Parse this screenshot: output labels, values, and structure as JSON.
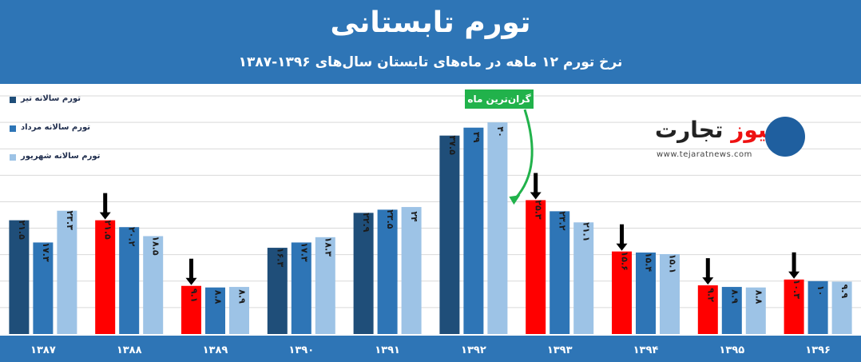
{
  "header": {
    "title": "تورم تابستانی",
    "subtitle": "نرخ تورم ۱۲ ماهه در ماه‌های تابستان سال‌های ۱۳۹۶-۱۳۸۷"
  },
  "legend": {
    "items": [
      {
        "label": "تورم سالانه تیر",
        "color": "#1f4e79"
      },
      {
        "label": "تورم سالانه مرداد",
        "color": "#2e75b6"
      },
      {
        "label": "تورم سالانه شهریور",
        "color": "#9dc3e6"
      }
    ]
  },
  "annotation": {
    "label": "گران‌ترین ماه"
  },
  "logo": {
    "brand_black": "تجارت",
    "brand_red": "نیوز",
    "url": "www.tejaratnews.com"
  },
  "colors": {
    "header_bg": "#2e75b6",
    "tir": "#1f4e79",
    "mordad": "#2e75b6",
    "shahrivar": "#9dc3e6",
    "highlight": "#ff0000",
    "grid": "#d9d9d9",
    "green": "#21b24b"
  },
  "chart_data": {
    "type": "bar",
    "categories": [
      "۱۳۸۷",
      "۱۳۸۸",
      "۱۳۸۹",
      "۱۳۹۰",
      "۱۳۹۱",
      "۱۳۹۲",
      "۱۳۹۳",
      "۱۳۹۴",
      "۱۳۹۵",
      "۱۳۹۶"
    ],
    "series": [
      {
        "name": "تورم سالانه تیر",
        "values": [
          21.5,
          21.5,
          9.1,
          16.3,
          22.9,
          37.5,
          25.3,
          15.6,
          9.2,
          10.3
        ],
        "labels": [
          "۲۱.۵",
          "۲۱.۵",
          "۹.۱",
          "۱۶.۳",
          "۲۲.۹",
          "۳۷.۵",
          "۲۵.۳",
          "۱۵.۶",
          "۹.۲",
          "۱۰.۳"
        ]
      },
      {
        "name": "تورم سالانه مرداد",
        "values": [
          17.3,
          20.2,
          8.8,
          17.3,
          23.5,
          39,
          23.2,
          15.4,
          8.9,
          10
        ],
        "labels": [
          "۱۷.۳",
          "۲۰.۲",
          "۸.۸",
          "۱۷.۳",
          "۲۳.۵",
          "۳۹",
          "۲۳.۲",
          "۱۵.۴",
          "۸.۹",
          "۱۰"
        ]
      },
      {
        "name": "تورم سالانه شهریور",
        "values": [
          23.3,
          18.5,
          8.9,
          18.3,
          24,
          40,
          21.1,
          15.1,
          8.8,
          9.9
        ],
        "labels": [
          "۲۳.۳",
          "۱۸.۵",
          "۸.۹",
          "۱۸.۳",
          "۲۴",
          "۴۰",
          "۲۱.۱",
          "۱۵.۱",
          "۸.۸",
          "۹.۹"
        ]
      }
    ],
    "highlighted": [
      {
        "category_index": 1,
        "series_index": 0
      },
      {
        "category_index": 2,
        "series_index": 0
      },
      {
        "category_index": 6,
        "series_index": 0
      },
      {
        "category_index": 7,
        "series_index": 0
      },
      {
        "category_index": 8,
        "series_index": 0
      },
      {
        "category_index": 9,
        "series_index": 0
      }
    ],
    "peak": {
      "category_index": 5,
      "series_index": 2
    },
    "ylim": [
      0,
      45
    ],
    "grid": true,
    "legend_position": "top-left"
  }
}
